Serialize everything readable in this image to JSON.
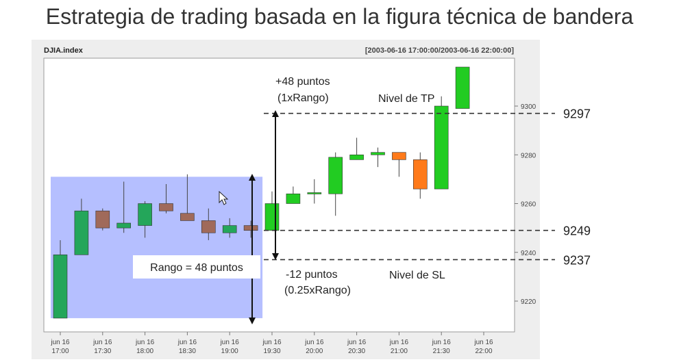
{
  "slide_title": "Estrategia de trading basada en la figura técnica de bandera",
  "chart_data": {
    "type": "candlestick",
    "symbol": "DJIA.index",
    "date_range": "[2003-06-16 17:00:00/2003-06-16 22:00:00]",
    "y_ticks": [
      9220,
      9240,
      9260,
      9280,
      9300
    ],
    "ylim": [
      9210,
      9315
    ],
    "x_tick_labels": [
      {
        "date": "jun 16",
        "time": "17:00"
      },
      {
        "date": "jun 16",
        "time": "17:30"
      },
      {
        "date": "jun 16",
        "time": "18:00"
      },
      {
        "date": "jun 16",
        "time": "18:30"
      },
      {
        "date": "jun 16",
        "time": "19:00"
      },
      {
        "date": "jun 16",
        "time": "19:30"
      },
      {
        "date": "jun 16",
        "time": "20:00"
      },
      {
        "date": "jun 16",
        "time": "20:30"
      },
      {
        "date": "jun 16",
        "time": "21:00"
      },
      {
        "date": "jun 16",
        "time": "21:30"
      },
      {
        "date": "jun 16",
        "time": "22:00"
      }
    ],
    "candles": [
      {
        "open": 9213,
        "high": 9245,
        "low": 9213,
        "close": 9239
      },
      {
        "open": 9239,
        "high": 9262,
        "low": 9239,
        "close": 9257
      },
      {
        "open": 9257,
        "high": 9258,
        "low": 9249,
        "close": 9250
      },
      {
        "open": 9250,
        "high": 9269,
        "low": 9248,
        "close": 9252
      },
      {
        "open": 9251,
        "high": 9261,
        "low": 9246,
        "close": 9260
      },
      {
        "open": 9260,
        "high": 9268,
        "low": 9256,
        "close": 9257
      },
      {
        "open": 9256,
        "high": 9272,
        "low": 9254,
        "close": 9253
      },
      {
        "open": 9253,
        "high": 9258,
        "low": 9245,
        "close": 9248
      },
      {
        "open": 9248,
        "high": 9254,
        "low": 9246,
        "close": 9251
      },
      {
        "open": 9251,
        "high": 9253,
        "low": 9246,
        "close": 9249
      },
      {
        "open": 9249,
        "high": 9265,
        "low": 9249,
        "close": 9260
      },
      {
        "open": 9260,
        "high": 9267,
        "low": 9260,
        "close": 9264
      },
      {
        "open": 9264,
        "high": 9270,
        "low": 9260,
        "close": 9264.5
      },
      {
        "open": 9264,
        "high": 9281,
        "low": 9255,
        "close": 9279
      },
      {
        "open": 9278,
        "high": 9287,
        "low": 9278,
        "close": 9280
      },
      {
        "open": 9280,
        "high": 9283,
        "low": 9275,
        "close": 9281
      },
      {
        "open": 9281,
        "high": 9281,
        "low": 9271,
        "close": 9278
      },
      {
        "open": 9278,
        "high": 9281,
        "low": 9262,
        "close": 9266
      },
      {
        "open": 9266,
        "high": 9304,
        "low": 9266,
        "close": 9300
      },
      {
        "open": 9299,
        "high": 9316,
        "low": 9299,
        "close": 9316
      }
    ],
    "candle_colors": [
      "#24a65a",
      "#24a65a",
      "#a06a5a",
      "#24a65a",
      "#24a65a",
      "#a06a5a",
      "#a06a5a",
      "#a06a5a",
      "#24a65a",
      "#a06a5a",
      "#22cc22",
      "#22cc22",
      "#22cc22",
      "#22cc22",
      "#22cc22",
      "#22cc22",
      "#ff7a1a",
      "#ff7a1a",
      "#22cc22",
      "#22cc22"
    ],
    "flag_region": {
      "start_index": 0,
      "end_index": 9,
      "low": 9213,
      "high": 9271,
      "color": "#a8b4ff"
    },
    "levels": [
      {
        "value": 9297,
        "label": "9297"
      },
      {
        "value": 9249,
        "label": "9249"
      },
      {
        "value": 9237,
        "label": "9237"
      }
    ],
    "annotations": {
      "rango": "Rango = 48 puntos",
      "tp_points": "+48 puntos",
      "tp_multiplier": "(1xRango)",
      "tp_label": "Nivel de TP",
      "sl_points": "-12 puntos",
      "sl_multiplier": "(0.25xRango)",
      "sl_label": "Nivel de SL"
    },
    "colors": {
      "panel_background": "#eeeeee",
      "plot_background": "#ffffff",
      "level_line": "#333333",
      "arrow": "#111111",
      "axis_text": "#444444"
    }
  }
}
